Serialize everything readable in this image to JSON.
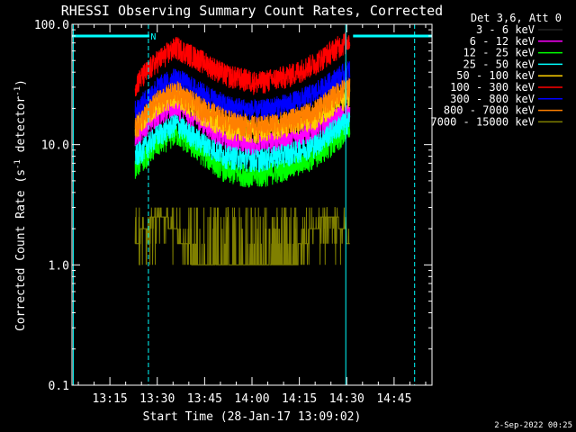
{
  "chart_data": {
    "type": "line",
    "title": "RHESSI Observing Summary Count Rates, Corrected",
    "xlabel": "Start Time (28-Jan-17 13:09:02)",
    "ylabel_main": "Corrected Count Rate (s",
    "ylabel_sup1": "-1",
    "ylabel_mid": " detector",
    "ylabel_sup2": "-1",
    "ylabel_end": ")",
    "yscale": "log",
    "ylim": [
      0.1,
      100
    ],
    "xlim_min": [
      783,
      897
    ],
    "x_ticks": [
      {
        "m": 795,
        "label": "13:15"
      },
      {
        "m": 810,
        "label": "13:30"
      },
      {
        "m": 825,
        "label": "13:45"
      },
      {
        "m": 840,
        "label": "14:00"
      },
      {
        "m": 855,
        "label": "14:15"
      },
      {
        "m": 870,
        "label": "14:30"
      },
      {
        "m": 885,
        "label": "14:45"
      }
    ],
    "y_ticks": [
      {
        "v": 0.1,
        "label": "0.1"
      },
      {
        "v": 1,
        "label": "1.0"
      },
      {
        "v": 10,
        "label": "10.0"
      },
      {
        "v": 100,
        "label": "100.0"
      }
    ],
    "legend_header": "Det 3,6, Att 0",
    "series": [
      {
        "name": "3 - 6 keV",
        "color": "#000000",
        "points": [
          [
            803,
            16
          ],
          [
            810,
            24
          ],
          [
            816,
            27
          ],
          [
            823,
            20
          ],
          [
            832,
            14
          ],
          [
            842,
            13
          ],
          [
            852,
            15
          ],
          [
            860,
            17
          ],
          [
            867,
            22
          ],
          [
            871,
            24
          ]
        ]
      },
      {
        "name": "6 - 12 keV",
        "color": "#ff00ff",
        "points": [
          [
            803,
            12
          ],
          [
            810,
            18
          ],
          [
            816,
            21
          ],
          [
            823,
            16
          ],
          [
            832,
            11
          ],
          [
            842,
            10
          ],
          [
            852,
            11.5
          ],
          [
            860,
            13
          ],
          [
            867,
            17
          ],
          [
            871,
            19
          ]
        ]
      },
      {
        "name": "12 - 25 keV",
        "color": "#00ff00",
        "points": [
          [
            803,
            6.5
          ],
          [
            810,
            10
          ],
          [
            816,
            12.5
          ],
          [
            823,
            9
          ],
          [
            832,
            6
          ],
          [
            842,
            5.5
          ],
          [
            852,
            6.5
          ],
          [
            860,
            8
          ],
          [
            867,
            11
          ],
          [
            871,
            14
          ]
        ]
      },
      {
        "name": "25 - 50 keV",
        "color": "#00ffff",
        "points": [
          [
            803,
            8
          ],
          [
            810,
            12
          ],
          [
            816,
            15
          ],
          [
            823,
            11
          ],
          [
            832,
            8
          ],
          [
            842,
            7.5
          ],
          [
            852,
            8.5
          ],
          [
            860,
            10
          ],
          [
            867,
            14
          ],
          [
            871,
            16
          ]
        ]
      },
      {
        "name": "50 - 100 keV",
        "color": "#ffd000",
        "points": [
          [
            803,
            14
          ],
          [
            810,
            22
          ],
          [
            816,
            26
          ],
          [
            823,
            19
          ],
          [
            832,
            14
          ],
          [
            842,
            13
          ],
          [
            852,
            15
          ],
          [
            860,
            17
          ],
          [
            867,
            23
          ],
          [
            871,
            26
          ]
        ]
      },
      {
        "name": "100 - 300 keV",
        "color": "#ff0000",
        "points": [
          [
            803,
            32
          ],
          [
            810,
            50
          ],
          [
            816,
            65
          ],
          [
            823,
            52
          ],
          [
            832,
            38
          ],
          [
            842,
            33
          ],
          [
            852,
            38
          ],
          [
            860,
            48
          ],
          [
            867,
            65
          ],
          [
            871,
            75
          ]
        ]
      },
      {
        "name": "300 - 800 keV",
        "color": "#0000ff",
        "points": [
          [
            803,
            19
          ],
          [
            810,
            30
          ],
          [
            816,
            36
          ],
          [
            823,
            28
          ],
          [
            832,
            21
          ],
          [
            842,
            19
          ],
          [
            852,
            22
          ],
          [
            860,
            27
          ],
          [
            867,
            36
          ],
          [
            871,
            42
          ]
        ]
      },
      {
        "name": "800 - 7000 keV",
        "color": "#ff8000",
        "points": [
          [
            803,
            14
          ],
          [
            810,
            23
          ],
          [
            816,
            28
          ],
          [
            823,
            21
          ],
          [
            832,
            16
          ],
          [
            842,
            14
          ],
          [
            852,
            16
          ],
          [
            860,
            19
          ],
          [
            867,
            27
          ],
          [
            871,
            31
          ]
        ]
      },
      {
        "name": "7000 - 15000 keV",
        "color": "#808000",
        "points": [
          [
            803,
            1.5
          ],
          [
            806,
            2
          ],
          [
            809,
            2.5
          ],
          [
            812,
            2.5
          ],
          [
            815,
            2
          ],
          [
            818,
            1.5
          ],
          [
            821,
            1.2
          ],
          [
            826,
            1.0
          ],
          [
            840,
            1.0
          ],
          [
            853,
            1.0
          ],
          [
            856,
            1.5
          ],
          [
            860,
            2
          ],
          [
            863,
            2.5
          ],
          [
            866,
            2.5
          ],
          [
            869,
            2
          ],
          [
            871,
            1.5
          ]
        ]
      }
    ],
    "markers": {
      "night_bar_y": 80,
      "night_intervals": [
        [
          783,
          807.5
        ],
        [
          872,
          897
        ]
      ],
      "n_label": "N",
      "n_label_m": 807.9,
      "dashed_v_lines": [
        807.2,
        891.5
      ],
      "solid_v_lines": [
        783.4,
        869.7
      ]
    }
  },
  "footer_date": "2-Sep-2022 00:25"
}
